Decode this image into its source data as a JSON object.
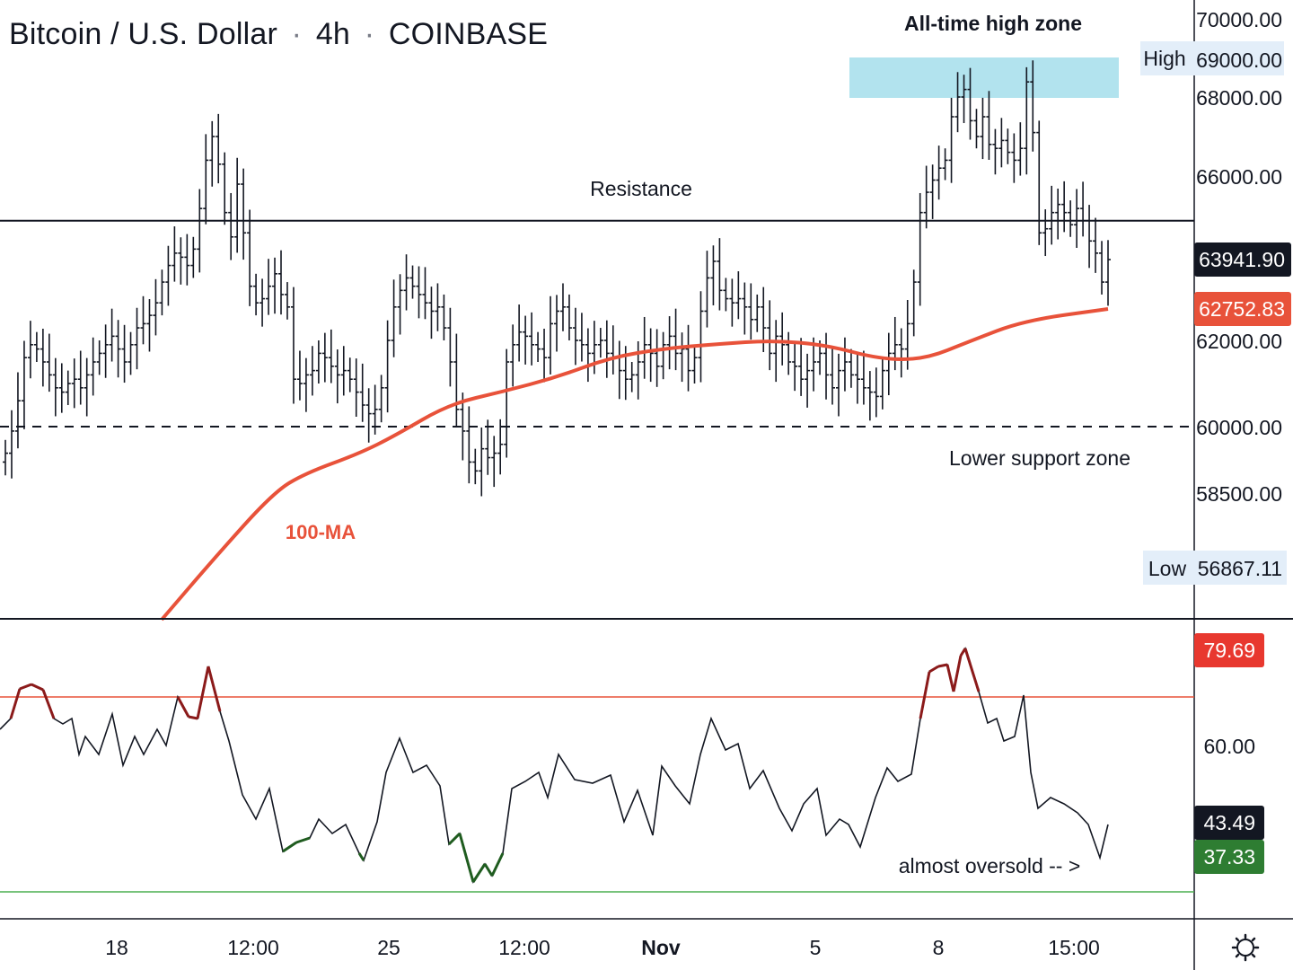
{
  "header": {
    "symbol": "Bitcoin / U.S. Dollar",
    "interval": "4h",
    "exchange": "COINBASE",
    "separator": "·"
  },
  "annotations": {
    "ath_zone": "All-time high zone",
    "resistance": "Resistance",
    "support": "Lower support zone",
    "ma": "100-MA",
    "oversold": "almost oversold -- >"
  },
  "price_axis": {
    "ticks": [
      "70000.00",
      "68000.00",
      "66000.00",
      "62000.00",
      "60000.00",
      "58500.00"
    ],
    "high_label": "High",
    "high_value": "69000.00",
    "low_label": "Low",
    "low_value": "56867.11",
    "last_price": "63941.90",
    "ma_value": "62752.83"
  },
  "rsi_axis": {
    "upper_value": "79.69",
    "mid_tick": "60.00",
    "current": "43.49",
    "ma_value": "37.33"
  },
  "time_axis": {
    "ticks": [
      "18",
      "12:00",
      "25",
      "12:00",
      "Nov",
      "5",
      "8",
      "15:00"
    ]
  },
  "colors": {
    "ma": "#e8523a",
    "ath_zone": "#b2e3ee",
    "rsi_overbought_line": "#e8523a",
    "rsi_oversold_line": "#4caf50",
    "rsi_overbought_seg": "#8b1a1a",
    "rsi_oversold_seg": "#1f5c1f",
    "price_box": "#131722",
    "ma_box": "#e8523a",
    "rsi_upper_box": "#e8382f",
    "rsi_ma_box": "#2e7d32"
  },
  "chart_data": {
    "type": "candlestick",
    "title": "Bitcoin / U.S. Dollar · 4h · COINBASE",
    "price_range": [
      55500,
      70500
    ],
    "resistance_level": 64900,
    "support_level": 60000,
    "ath_zone": [
      68000,
      69000
    ],
    "series_close": [
      59400,
      59900,
      60600,
      61600,
      61900,
      61800,
      61500,
      61200,
      60900,
      60800,
      61000,
      61100,
      60900,
      61200,
      61500,
      61700,
      61900,
      62100,
      61800,
      61500,
      61900,
      62300,
      62400,
      62600,
      62900,
      63400,
      63800,
      64100,
      64000,
      63800,
      64200,
      65200,
      66400,
      67000,
      66300,
      65100,
      64500,
      65800,
      64600,
      63300,
      62900,
      63000,
      63300,
      63600,
      63100,
      62800,
      61100,
      61000,
      61200,
      61300,
      61700,
      61600,
      61400,
      61200,
      61300,
      61100,
      60800,
      60500,
      60300,
      60400,
      60900,
      62000,
      62800,
      63200,
      63500,
      63300,
      63100,
      62900,
      62700,
      62800,
      62300,
      61500,
      60400,
      59900,
      59200,
      59000,
      59500,
      59300,
      59400,
      59600,
      61500,
      61900,
      62200,
      62100,
      61900,
      61800,
      61600,
      62400,
      62700,
      62800,
      62300,
      62000,
      61900,
      61700,
      61900,
      62000,
      61700,
      61600,
      61300,
      61100,
      61200,
      61500,
      61900,
      61700,
      61400,
      61900,
      62100,
      61700,
      61800,
      61300,
      61600,
      62700,
      63500,
      63900,
      63200,
      63000,
      62900,
      63000,
      62800,
      62500,
      62800,
      62300,
      61700,
      62100,
      61900,
      61500,
      61400,
      61100,
      61300,
      61500,
      61700,
      61200,
      60900,
      61300,
      61500,
      61200,
      61100,
      60900,
      60800,
      60700,
      61300,
      61700,
      61900,
      61800,
      62400,
      63400,
      65100,
      65600,
      65900,
      66200,
      66400,
      67500,
      68000,
      68200,
      67400,
      67000,
      67500,
      66800,
      66700,
      66900,
      66600,
      66400,
      66700,
      68400,
      67100,
      64600,
      64700,
      65100,
      65300,
      65100,
      64800,
      65200,
      64900,
      64400,
      64100,
      63400,
      63941.9
    ],
    "ma_100": {
      "name": "100-MA",
      "last": 62752.83
    },
    "rsi": {
      "overbought": 70,
      "oversold": 30,
      "current": 43.49,
      "ma": 37.33,
      "upper_value": 79.69,
      "ticks": [
        60
      ],
      "range": [
        25,
        85
      ]
    }
  }
}
